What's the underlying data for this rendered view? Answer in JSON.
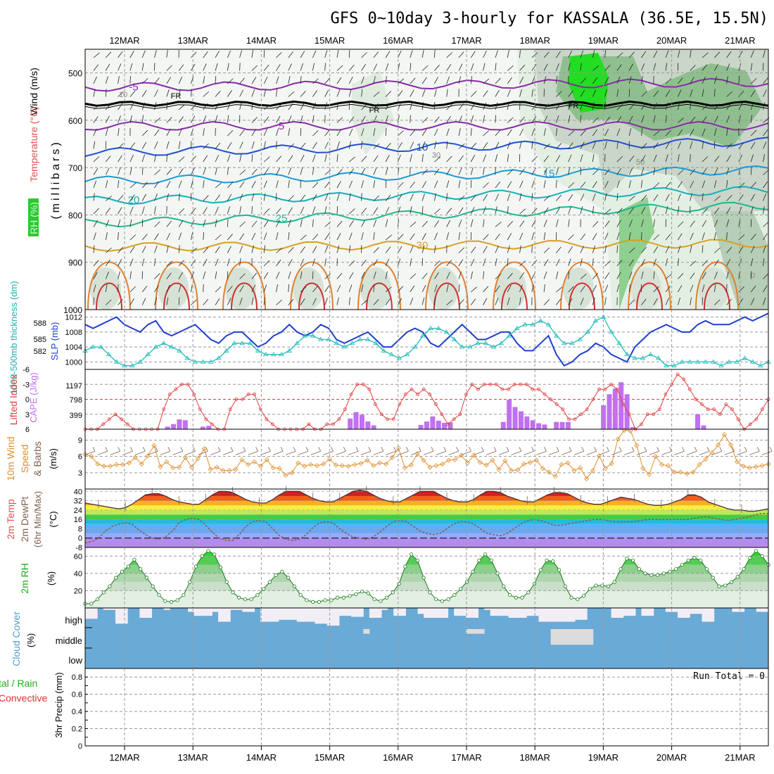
{
  "title": "GFS 0~10day 3-hourly for KASSALA (36.5E, 15.5N)",
  "dates": [
    "12MAR",
    "13MAR",
    "14MAR",
    "15MAR",
    "16MAR",
    "17MAR",
    "18MAR",
    "19MAR",
    "20MAR",
    "21MAR"
  ],
  "colors": {
    "rh_dark": "#a9b7a9",
    "rh_mid": "#c9d6c9",
    "rh_light": "#e4efe4",
    "rh_green": "#55cc55",
    "rh_bright": "#22dd22",
    "slp": "#1f3fcf",
    "thick": "#22bbbb",
    "li": "#e04040",
    "cape": "#c070f0",
    "wspd": "#e09030",
    "cloud": "#6aaad6"
  },
  "chart_data": [
    {
      "id": "upper",
      "type": "contour",
      "ylabel": "(millibars)",
      "legend_labels": {
        "wind": "Wind (m/s)",
        "temp": "Temperature (°C)",
        "rh": "RH (%)"
      },
      "y_ticks": [
        500,
        600,
        700,
        800,
        900,
        1000
      ],
      "ylim": [
        1000,
        450
      ],
      "temp_levels": [
        {
          "label": "-5",
          "p_start": 530,
          "p_end": 520,
          "color": "#8a2aa8"
        },
        {
          "label": "5",
          "p_start": 612,
          "p_end": 612,
          "color": "#8a2aa8"
        },
        {
          "label": "10",
          "p_start": 668,
          "p_end": 645,
          "color": "#2050d0"
        },
        {
          "label": "15",
          "p_start": 728,
          "p_end": 705,
          "color": "#1b9ad6"
        },
        {
          "label": "20",
          "p_start": 770,
          "p_end": 748,
          "color": "#13b0b8"
        },
        {
          "label": "25",
          "p_start": 818,
          "p_end": 780,
          "color": "#20b890"
        },
        {
          "label": "30",
          "p_start": 868,
          "p_end": 860,
          "color": "#d8a020"
        }
      ],
      "freezing_label": "FR",
      "freezing_level_mb": 565,
      "rh_labels": [
        "10",
        "30",
        "50",
        "0"
      ]
    },
    {
      "id": "slp_thickness",
      "type": "line",
      "labels": {
        "thick": "1000-500mb thickness (dm)",
        "slp": "SLP (mb)"
      },
      "thickness_ticks": [
        "582",
        "585",
        "588"
      ],
      "slp_ticks": [
        "1000",
        "1004",
        "1008",
        "1012"
      ],
      "slp_ylim": [
        998,
        1014
      ],
      "slp": [
        1010,
        1009,
        1010,
        1011,
        1012,
        1010,
        1009,
        1008,
        1010,
        1011,
        1008,
        1007,
        1008,
        1009,
        1010,
        1008,
        1006,
        1005,
        1007,
        1008,
        1008,
        1006,
        1004,
        1005,
        1007,
        1008,
        1010,
        1008,
        1007,
        1008,
        1010,
        1009,
        1006,
        1005,
        1006,
        1007,
        1008,
        1006,
        1004,
        1004,
        1006,
        1008,
        1009,
        1008,
        1005,
        1004,
        1006,
        1008,
        1010,
        1008,
        1006,
        1006,
        1007,
        1008,
        1008,
        1005,
        1003,
        1003,
        1005,
        1007,
        1002,
        999,
        1000,
        1002,
        1003,
        1005,
        1004,
        1002,
        1001,
        1000,
        1004,
        1006,
        1008,
        1009,
        1010,
        1009,
        1008,
        1008,
        1010,
        1011,
        1010,
        1010,
        1010,
        1011,
        1012,
        1011,
        1012,
        1013
      ],
      "thickness_slp_equiv": [
        1003,
        1004,
        1004,
        1002,
        1000,
        999,
        999,
        1000,
        1002,
        1004,
        1005,
        1004,
        1003,
        1001,
        1000,
        1000,
        1000,
        1001,
        1003,
        1005,
        1005,
        1005,
        1003,
        1002,
        1002,
        1002,
        1003,
        1005,
        1007,
        1007,
        1006,
        1006,
        1005,
        1004,
        1005,
        1006,
        1006,
        1005,
        1003,
        1002,
        1001,
        1002,
        1004,
        1007,
        1009,
        1009,
        1008,
        1006,
        1004,
        1004,
        1005,
        1005,
        1004,
        1005,
        1007,
        1009,
        1010,
        1010,
        1011,
        1010,
        1007,
        1005,
        1005,
        1006,
        1008,
        1011,
        1012,
        1008,
        1005,
        1002,
        1001,
        1001,
        1002,
        1001,
        999,
        999,
        1000,
        1000,
        1000,
        1000,
        1000,
        999,
        1000,
        1000,
        1001,
        1000,
        999,
        1000
      ]
    },
    {
      "id": "lifted_cape",
      "type": "bar+line",
      "labels": {
        "li": "Lifted Index",
        "cape": "CAPE (J/kg)"
      },
      "li_ticks": [
        "-6",
        "-3",
        "0",
        "3",
        "6"
      ],
      "cape_ticks": [
        "1197",
        "798",
        "399"
      ],
      "li_ylim": [
        6,
        -6
      ],
      "lifted_index": [
        6,
        6,
        6,
        5,
        4,
        3,
        4,
        5,
        6,
        6,
        6,
        6,
        6,
        2,
        -1,
        -2,
        -3,
        -3,
        -1,
        2,
        4,
        5,
        6,
        6,
        2,
        0,
        0,
        -1,
        -1,
        2,
        4,
        5,
        6,
        6,
        6,
        6,
        6,
        5,
        6,
        6,
        5,
        5,
        4,
        2,
        -1,
        -3,
        -3,
        -2,
        1,
        3,
        4,
        4,
        1,
        -1,
        -2,
        -1,
        -2,
        -1,
        1,
        3,
        5,
        4,
        3,
        -1,
        -3,
        -2,
        -3,
        -3,
        -3,
        -2,
        -2,
        -3,
        -3,
        -3,
        -2,
        -2,
        -1,
        0,
        1,
        2,
        4,
        4,
        3,
        2,
        0,
        -2,
        -2,
        -3,
        -2,
        1,
        3,
        6,
        5,
        3,
        3,
        2,
        -1,
        -3,
        -5,
        -4,
        -2,
        0,
        1,
        2,
        2,
        3,
        1,
        2,
        4,
        6,
        5,
        4,
        2,
        0
      ],
      "cape": [
        0,
        0,
        0,
        0,
        0,
        0,
        0,
        0,
        0,
        0,
        0,
        0,
        0,
        0,
        60,
        120,
        230,
        210,
        0,
        0,
        60,
        80,
        0,
        0,
        0,
        0,
        0,
        0,
        0,
        0,
        0,
        0,
        0,
        0,
        0,
        0,
        0,
        0,
        0,
        0,
        0,
        0,
        0,
        0,
        0,
        250,
        400,
        340,
        180,
        90,
        0,
        0,
        0,
        0,
        0,
        0,
        0,
        100,
        180,
        300,
        200,
        150,
        160,
        0,
        0,
        0,
        0,
        0,
        0,
        0,
        0,
        170,
        690,
        520,
        420,
        300,
        210,
        140,
        110,
        0,
        170,
        170,
        170,
        0,
        0,
        0,
        0,
        0,
        560,
        820,
        950,
        1100,
        820,
        50,
        0,
        0,
        0,
        0,
        0,
        0,
        0,
        0,
        0,
        0,
        350,
        90,
        0,
        0,
        0,
        0,
        0,
        0,
        0,
        0,
        0,
        0,
        0
      ]
    },
    {
      "id": "wind10m",
      "type": "line",
      "labels": {
        "wind": "10m Wind",
        "speed": "Speed",
        "barbs": "& Barbs",
        "unit": "(m/s)"
      },
      "y_ticks": [
        "3",
        "6",
        "9"
      ],
      "ylim": [
        0,
        11
      ],
      "wind_speed": [
        6.4,
        6,
        4.6,
        4.2,
        4.2,
        4.5,
        4.5,
        4.8,
        5.8,
        4.6,
        6.1,
        8,
        4.1,
        5,
        3.9,
        4,
        5.8,
        4,
        5.6,
        7.4,
        3.6,
        4,
        3.4,
        3.4,
        3.6,
        5.4,
        4.5,
        5,
        4.2,
        5.4,
        3.9,
        3.8,
        2.5,
        3,
        4.8,
        4.2,
        4.5,
        4.3,
        4.6,
        5.5,
        4.4,
        4.3,
        4.2,
        4.5,
        4.7,
        5.3,
        4.3,
        4.8,
        4.6,
        5.8,
        7.5,
        3.9,
        4.4,
        6.5,
        5.3,
        4,
        4.3,
        4.6,
        5.3,
        5.4,
        6.2,
        4.8,
        6.2,
        4.9,
        4.4,
        5.3,
        3.6,
        5.2,
        3.4,
        3.5,
        4.6,
        4.9,
        5.3,
        3.8,
        3.1,
        2.3,
        4.5,
        4.8,
        3.4,
        3.9,
        1.9,
        3.4,
        6.1,
        3.8,
        4.7,
        9.2,
        10.8,
        10.7,
        8,
        3.8,
        2.7,
        6,
        4.5,
        4.3,
        3.1,
        3.1,
        2.8,
        3.1,
        4.5,
        5.5,
        6.7,
        8.1,
        10,
        8.1,
        5,
        4.2,
        3.9,
        4.1,
        4.3,
        4.6
      ]
    },
    {
      "id": "temp2m",
      "type": "area",
      "labels": {
        "temp": "2m Temp",
        "dewpt": "2m DewPt",
        "minmax": "(6hr Min/Max)",
        "unit": "(°C)"
      },
      "y_ticks": [
        "-8",
        "0",
        "8",
        "16",
        "24",
        "32",
        "40"
      ],
      "ylim": [
        -8,
        42
      ],
      "temperature": [
        30,
        29,
        28,
        27,
        26,
        25,
        26,
        29,
        33,
        37,
        38,
        38,
        36,
        33,
        31,
        30,
        29,
        29,
        33,
        37,
        40,
        40,
        39,
        36,
        33,
        31,
        30,
        30,
        33,
        37,
        40,
        40,
        40,
        37,
        34,
        32,
        31,
        31,
        34,
        37,
        40,
        41,
        40,
        37,
        34,
        32,
        31,
        31,
        34,
        37,
        40,
        40,
        40,
        37,
        34,
        32,
        31,
        31,
        33,
        37,
        40,
        40,
        39,
        36,
        34,
        32,
        31,
        31,
        34,
        37,
        39,
        39,
        38,
        35,
        32,
        30,
        29,
        29,
        31,
        33,
        35,
        34,
        33,
        31,
        29,
        28,
        28,
        29,
        31,
        33,
        37,
        37,
        35,
        31,
        29,
        27,
        25,
        24,
        24,
        23,
        23,
        24,
        25
      ],
      "dewpoint": [
        -4,
        -3,
        0,
        6,
        10,
        12,
        13,
        12,
        7,
        3,
        0,
        -1,
        1,
        6,
        13,
        16,
        17,
        16,
        11,
        5,
        0,
        -2,
        -2,
        3,
        10,
        14,
        15,
        14,
        8,
        2,
        -1,
        -2,
        -1,
        3,
        9,
        13,
        14,
        13,
        8,
        4,
        1,
        0,
        -1,
        1,
        5,
        10,
        14,
        15,
        14,
        10,
        6,
        4,
        3,
        4,
        8,
        12,
        14,
        14,
        12,
        8,
        4,
        3,
        2,
        4,
        8,
        12,
        15,
        16,
        15,
        13,
        11,
        11,
        12,
        13,
        14,
        15,
        16,
        16,
        15,
        14,
        14,
        14,
        14,
        15,
        16,
        16,
        16,
        16,
        16,
        16,
        16,
        17,
        18,
        18,
        17,
        16,
        15,
        16,
        17,
        18,
        20,
        21,
        21
      ]
    },
    {
      "id": "rh2m",
      "type": "area",
      "labels": {
        "rh": "2m RH",
        "unit": "(%)"
      },
      "y_ticks": [
        "20",
        "40",
        "60"
      ],
      "ylim": [
        0,
        70
      ],
      "rh": [
        5,
        5,
        10,
        18,
        25,
        35,
        42,
        48,
        56,
        45,
        35,
        25,
        15,
        8,
        7,
        9,
        15,
        30,
        48,
        60,
        66,
        62,
        47,
        30,
        18,
        12,
        10,
        10,
        15,
        22,
        30,
        38,
        42,
        35,
        25,
        15,
        9,
        7,
        7,
        9,
        9,
        12,
        12,
        14,
        16,
        19,
        17,
        10,
        8,
        12,
        18,
        28,
        48,
        62,
        55,
        35,
        18,
        10,
        8,
        10,
        15,
        22,
        30,
        42,
        55,
        62,
        55,
        40,
        25,
        15,
        12,
        12,
        18,
        28,
        44,
        55,
        54,
        44,
        25,
        12,
        10,
        14,
        22,
        26,
        26,
        25,
        30,
        45,
        57,
        55,
        45,
        40,
        38,
        38,
        40,
        42,
        45,
        50,
        55,
        58,
        55,
        45,
        35,
        25,
        26,
        30,
        36,
        45,
        58,
        66,
        60,
        50
      ]
    },
    {
      "id": "cloud",
      "type": "heatmap",
      "labels": {
        "title": "Cloud Cover",
        "unit": "(%)"
      },
      "layers": [
        "high",
        "middle",
        "low"
      ],
      "high_cover": [
        0.45,
        0.45,
        1,
        0.9,
        0.9,
        0.2,
        0.2,
        1,
        1,
        0.5,
        0.5,
        1,
        1,
        0.9,
        1,
        1,
        1,
        0.8,
        0.6,
        0.6,
        0.6,
        0.8,
        0.3,
        0.3,
        0.9,
        0.9,
        0.8,
        0.8,
        1,
        0.3,
        0.3,
        0.3,
        0.4,
        0.4,
        0.4,
        0.3,
        0.3,
        0.3,
        0.2,
        0.2,
        0.1,
        0.1,
        0.6,
        0.6,
        0.55,
        0.55,
        1,
        0.5,
        0.5,
        0.9,
        1,
        0.6,
        0.6,
        1,
        1,
        0.7,
        0.5,
        0.5,
        0.5,
        0.5,
        1,
        0.6,
        0.6,
        0.5,
        0.5,
        1,
        0.9,
        0.6,
        0.6,
        0.6,
        0.5,
        0.5,
        0.5,
        0.6,
        0.6,
        0.3,
        0.3,
        0.3,
        0.3,
        0.3,
        0.3,
        0.4,
        0.4,
        1,
        1,
        1,
        1,
        0.5,
        0.5,
        0.6,
        0.6,
        1,
        0.6,
        0.6,
        1,
        1,
        0.8,
        0.8,
        0.5,
        0.5,
        0.7,
        0.7,
        0.3,
        0.3,
        1,
        1,
        1,
        0.8,
        0.8,
        1,
        1,
        0.8,
        0.8
      ],
      "middle_cover": [
        1,
        1,
        1,
        1,
        1,
        1,
        1,
        1,
        1,
        1,
        1,
        1,
        1,
        1,
        1,
        1,
        1,
        1,
        1,
        1,
        1,
        1,
        1,
        1,
        1,
        1,
        1,
        1,
        1,
        1,
        1,
        1,
        1,
        1,
        1,
        1,
        1,
        1,
        1,
        1,
        1,
        1,
        1,
        1,
        1,
        1,
        0.2,
        1,
        1,
        1,
        1,
        1,
        1,
        1,
        1,
        1,
        1,
        1,
        1,
        1,
        1,
        1,
        1,
        0.2,
        0.2,
        0.2,
        1,
        1,
        1,
        1,
        1,
        1,
        1,
        1,
        1,
        1,
        1,
        0.2,
        0.2,
        0.2,
        0.2,
        0.2,
        0.2,
        0.2,
        1,
        1,
        1,
        1,
        1,
        1,
        1,
        1,
        1,
        1,
        1,
        1,
        1,
        1,
        1,
        1,
        1,
        1,
        1,
        1,
        1,
        1,
        1,
        1,
        1,
        1,
        1,
        1,
        1
      ]
    },
    {
      "id": "precip",
      "type": "bar",
      "labels": {
        "left": "tal / Rain",
        "convective": "Convective",
        "ylabel": "3hr Precip (mm)",
        "run_total": "Run Total = 0"
      },
      "y_ticks": [
        "0",
        "0.2",
        "0.4",
        "0.6",
        "0.8"
      ],
      "ylim": [
        0,
        0.9
      ],
      "values": []
    }
  ]
}
